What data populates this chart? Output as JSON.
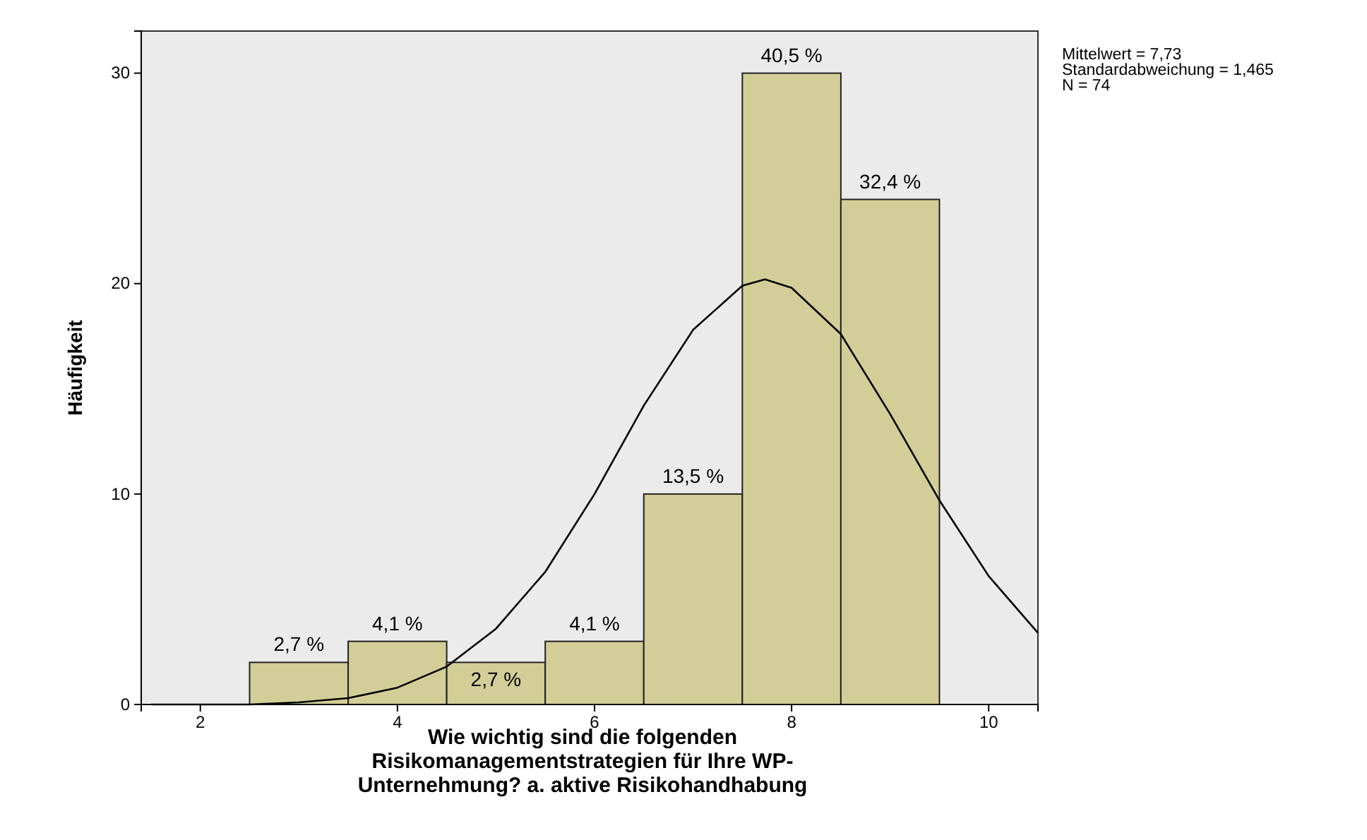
{
  "chart_data": {
    "type": "histogram",
    "xlabel": "Wie wichtig sind die folgenden\nRisikomanagementstrategien für Ihre WP-\nUnternehmung? a. aktive Risikohandhabung",
    "ylabel": "Häufigkeit",
    "bins": [
      2.5,
      3.5,
      4.5,
      5.5,
      6.5,
      7.5,
      8.5,
      9.5
    ],
    "values": [
      2,
      3,
      2,
      3,
      10,
      30,
      24
    ],
    "color": "#d3ce97",
    "series": [
      {
        "type": "line",
        "color": "#000000",
        "x": [
          1.5,
          2,
          2.5,
          3,
          3.5,
          4,
          4.5,
          5,
          5.5,
          6,
          6.5,
          7,
          7.5,
          7.73,
          8,
          8.5,
          9,
          9.5,
          10,
          10.5
        ],
        "values": [
          0,
          0,
          0,
          0.1,
          0.3,
          0.8,
          1.8,
          3.6,
          6.3,
          10,
          14.2,
          17.8,
          19.9,
          20.2,
          19.8,
          17.6,
          13.8,
          9.7,
          6.1,
          3.4
        ]
      }
    ],
    "xlim": [
      1.4,
      10.5
    ],
    "xticks": [
      2,
      4,
      6,
      8,
      10
    ],
    "ylim": [
      0,
      32
    ],
    "yticks": [
      0,
      10,
      20,
      30
    ],
    "grid": false,
    "annotations": [
      "Mittelwert = 7,73\nStandardabweichung = 1,465\nN = 74",
      {
        "text": "2,7 %",
        "x": 3,
        "y": 2
      },
      {
        "text": "4,1 %",
        "x": 4,
        "y": 3
      },
      {
        "text": "2,7 %",
        "x": 5,
        "y": 2
      },
      {
        "text": "4,1 %",
        "x": 6,
        "y": 3
      },
      {
        "text": "13,5 %",
        "x": 7,
        "y": 10
      },
      {
        "text": "40,5 %",
        "x": 8,
        "y": 30
      },
      {
        "text": "32,4 %",
        "x": 9,
        "y": 24
      }
    ]
  }
}
